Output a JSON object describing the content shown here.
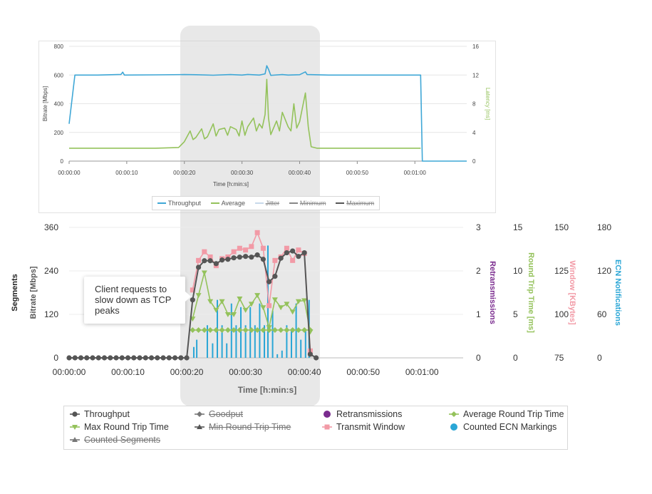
{
  "callout": {
    "text": "Client requests to slow down as TCP peaks"
  },
  "chart_data": [
    {
      "type": "line",
      "xlabel": "Time [h:min:s]",
      "ylabel": "Bitrate [Mbps]",
      "y2label": "Latency [ms]",
      "ylim": [
        0,
        800
      ],
      "y2lim": [
        0,
        16
      ],
      "y_ticks": [
        "0",
        "200",
        "400",
        "600",
        "800"
      ],
      "y2_ticks": [
        "0",
        "4",
        "8",
        "12",
        "16"
      ],
      "x_ticks": [
        "00:00:00",
        "00:00:10",
        "00:00:20",
        "00:00:30",
        "00:00:40",
        "00:00:50",
        "00:01:00"
      ],
      "x_range_s": [
        0,
        69
      ],
      "grid": true,
      "legend": [
        {
          "label": "Throughput",
          "color": "#3fa7d6",
          "marker": "circle",
          "hidden": false
        },
        {
          "label": "Average",
          "color": "#94c25b",
          "marker": "diamond",
          "hidden": false
        },
        {
          "label": "Jitter",
          "color": "#c8d9ea",
          "marker": "none",
          "hidden": true
        },
        {
          "label": "Minimum",
          "color": "#888888",
          "marker": "triangle",
          "hidden": true
        },
        {
          "label": "Maximum",
          "color": "#555555",
          "marker": "cross",
          "hidden": true
        }
      ],
      "series": [
        {
          "name": "Throughput",
          "axis": "left",
          "color": "#3fa7d6",
          "points": [
            [
              0,
              260
            ],
            [
              1,
              600
            ],
            [
              5,
              600
            ],
            [
              9,
              604
            ],
            [
              9.3,
              620
            ],
            [
              9.6,
              600
            ],
            [
              15,
              601
            ],
            [
              20,
              603
            ],
            [
              22,
              602
            ],
            [
              25,
              599
            ],
            [
              28,
              603
            ],
            [
              30,
              600
            ],
            [
              31,
              604
            ],
            [
              33,
              600
            ],
            [
              34,
              608
            ],
            [
              34.3,
              665
            ],
            [
              34.6,
              640
            ],
            [
              35,
              598
            ],
            [
              37,
              603
            ],
            [
              38,
              600
            ],
            [
              40,
              602
            ],
            [
              41,
              622
            ],
            [
              41.3,
              603
            ],
            [
              45,
              600
            ],
            [
              50,
              600
            ],
            [
              55,
              600
            ],
            [
              60,
              600
            ],
            [
              61,
              600
            ],
            [
              61.3,
              0
            ],
            [
              69,
              0
            ]
          ]
        },
        {
          "name": "Average",
          "axis": "right",
          "color": "#94c25b",
          "points": [
            [
              0,
              1.8
            ],
            [
              2,
              1.8
            ],
            [
              5,
              1.8
            ],
            [
              10,
              1.8
            ],
            [
              15,
              1.8
            ],
            [
              19,
              1.9
            ],
            [
              20,
              2.7
            ],
            [
              21,
              4.2
            ],
            [
              21.5,
              3
            ],
            [
              22,
              3.3
            ],
            [
              23,
              4.5
            ],
            [
              23.5,
              3.1
            ],
            [
              24,
              3.4
            ],
            [
              25,
              5.2
            ],
            [
              25.5,
              3.5
            ],
            [
              26,
              4.4
            ],
            [
              27,
              4.6
            ],
            [
              27.5,
              3.6
            ],
            [
              28,
              4.8
            ],
            [
              29,
              4.4
            ],
            [
              29.5,
              3.5
            ],
            [
              30,
              5.6
            ],
            [
              30.5,
              3.6
            ],
            [
              31,
              4.8
            ],
            [
              32,
              6
            ],
            [
              32.5,
              4.2
            ],
            [
              33,
              5.2
            ],
            [
              33.5,
              4.6
            ],
            [
              34,
              6.5
            ],
            [
              34.3,
              11.4
            ],
            [
              34.6,
              6
            ],
            [
              35,
              3.7
            ],
            [
              36,
              5.6
            ],
            [
              36.5,
              4.2
            ],
            [
              37,
              6.8
            ],
            [
              38,
              4.8
            ],
            [
              38.5,
              4.2
            ],
            [
              39,
              8
            ],
            [
              39.5,
              4.6
            ],
            [
              40,
              5.5
            ],
            [
              41,
              9.5
            ],
            [
              41.5,
              4.8
            ],
            [
              42,
              2
            ],
            [
              43,
              1.8
            ],
            [
              45,
              1.8
            ],
            [
              50,
              1.8
            ],
            [
              55,
              1.8
            ],
            [
              61,
              1.8
            ]
          ]
        }
      ]
    },
    {
      "type": "line",
      "xlabel": "Time [h:min:s]",
      "ylabel": "Bitrate [Mbps]",
      "ylabel_outer": "Segments",
      "ylim": [
        0,
        360
      ],
      "y_ticks": [
        "0",
        "120",
        "240",
        "360"
      ],
      "x_ticks": [
        "00:00:00",
        "00:00:10",
        "00:00:20",
        "00:00:30",
        "00:00:40",
        "00:00:50",
        "00:01:00"
      ],
      "x_range_s": [
        0,
        67
      ],
      "grid": true,
      "right_axes": [
        {
          "label": "Retransmissions",
          "color": "#7a2b8e",
          "ticks": [
            "0",
            "1",
            "2",
            "3"
          ]
        },
        {
          "label": "Round Trip Time [ms]",
          "color": "#94c25b",
          "ticks": [
            "0",
            "5",
            "10",
            "15"
          ]
        },
        {
          "label": "Window [KBytes]",
          "color": "#f29aa6",
          "ticks": [
            "75",
            "100",
            "125",
            "150"
          ]
        },
        {
          "label": "ECN Notifications",
          "color": "#2aa6d6",
          "ticks": [
            "0",
            "60",
            "120",
            "180"
          ]
        }
      ],
      "legend": [
        {
          "label": "Throughput",
          "color": "#555555",
          "marker": "circle",
          "hidden": false
        },
        {
          "label": "Goodput",
          "color": "#777777",
          "marker": "diamond",
          "hidden": true
        },
        {
          "label": "Retransmissions",
          "color": "#7a2b8e",
          "marker": "dot",
          "hidden": false
        },
        {
          "label": "Average Round Trip Time",
          "color": "#94c25b",
          "marker": "diamond",
          "hidden": false
        },
        {
          "label": "Max Round Trip Time",
          "color": "#94c25b",
          "marker": "triangle-down",
          "hidden": false
        },
        {
          "label": "Min Round Trip Time",
          "color": "#555555",
          "marker": "triangle",
          "hidden": true
        },
        {
          "label": "Transmit Window",
          "color": "#f29aa6",
          "marker": "square",
          "hidden": false
        },
        {
          "label": "Counted ECN Markings",
          "color": "#2aa6d6",
          "marker": "dot",
          "hidden": false
        },
        {
          "label": "Counted Segments",
          "color": "#777777",
          "marker": "triangle",
          "hidden": true
        }
      ],
      "series": [
        {
          "name": "Throughput",
          "units": "Mbps",
          "color": "#555555",
          "points": [
            [
              0,
              0
            ],
            [
              1,
              0
            ],
            [
              2,
              0
            ],
            [
              3,
              0
            ],
            [
              4,
              0
            ],
            [
              5,
              0
            ],
            [
              6,
              0
            ],
            [
              7,
              0
            ],
            [
              8,
              0
            ],
            [
              9,
              0
            ],
            [
              10,
              0
            ],
            [
              11,
              0
            ],
            [
              12,
              0
            ],
            [
              13,
              0
            ],
            [
              14,
              0
            ],
            [
              15,
              0
            ],
            [
              16,
              0
            ],
            [
              17,
              0
            ],
            [
              18,
              0
            ],
            [
              19,
              0
            ],
            [
              20,
              0
            ],
            [
              21,
              160
            ],
            [
              22,
              250
            ],
            [
              23,
              268
            ],
            [
              24,
              268
            ],
            [
              25,
              260
            ],
            [
              26,
              270
            ],
            [
              27,
              272
            ],
            [
              28,
              276
            ],
            [
              29,
              278
            ],
            [
              30,
              280
            ],
            [
              31,
              278
            ],
            [
              32,
              284
            ],
            [
              33,
              272
            ],
            [
              34,
              210
            ],
            [
              35,
              225
            ],
            [
              36,
              275
            ],
            [
              37,
              290
            ],
            [
              38,
              295
            ],
            [
              39,
              280
            ],
            [
              40,
              290
            ],
            [
              41,
              10
            ],
            [
              42,
              0
            ]
          ]
        },
        {
          "name": "Max Round Trip Time",
          "units": "ms",
          "color": "#94c25b",
          "points": [
            [
              21,
              4.5
            ],
            [
              22,
              7.2
            ],
            [
              23,
              9.8
            ],
            [
              24,
              6.5
            ],
            [
              25,
              5.5
            ],
            [
              26,
              6.5
            ],
            [
              27,
              5
            ],
            [
              28,
              5
            ],
            [
              29,
              6.8
            ],
            [
              30,
              5.5
            ],
            [
              31,
              6.2
            ],
            [
              32,
              7.2
            ],
            [
              33,
              5.8
            ],
            [
              34,
              3.5
            ],
            [
              35,
              6.7
            ],
            [
              36,
              5.8
            ],
            [
              37,
              6.2
            ],
            [
              38,
              5.3
            ],
            [
              39,
              6.5
            ],
            [
              40,
              6.6
            ],
            [
              41,
              3
            ]
          ]
        },
        {
          "name": "Average Round Trip Time",
          "units": "ms",
          "color": "#94c25b",
          "points": [
            [
              21,
              3.2
            ],
            [
              22,
              3.2
            ],
            [
              23,
              3.2
            ],
            [
              24,
              3.2
            ],
            [
              25,
              3.2
            ],
            [
              26,
              3.2
            ],
            [
              27,
              3.2
            ],
            [
              28,
              3.2
            ],
            [
              29,
              3.2
            ],
            [
              30,
              3.2
            ],
            [
              31,
              3.2
            ],
            [
              32,
              3.2
            ],
            [
              33,
              3.2
            ],
            [
              34,
              3.2
            ],
            [
              35,
              3.2
            ],
            [
              36,
              3.2
            ],
            [
              37,
              3.2
            ],
            [
              38,
              3.2
            ],
            [
              39,
              3.2
            ],
            [
              40,
              3.2
            ],
            [
              41,
              3.2
            ]
          ]
        },
        {
          "name": "Transmit Window",
          "units": "KBytes",
          "color": "#f29aa6",
          "points": [
            [
              21,
              114
            ],
            [
              22,
              131
            ],
            [
              23,
              136
            ],
            [
              24,
              133
            ],
            [
              25,
              128
            ],
            [
              26,
              132
            ],
            [
              27,
              133
            ],
            [
              28,
              136
            ],
            [
              29,
              138
            ],
            [
              30,
              137
            ],
            [
              31,
              139
            ],
            [
              32,
              147
            ],
            [
              33,
              138
            ],
            [
              34,
              105
            ],
            [
              35,
              131
            ],
            [
              36,
              133
            ],
            [
              37,
              138
            ],
            [
              38,
              131
            ],
            [
              39,
              137
            ],
            [
              40,
              135
            ],
            [
              41,
              79
            ]
          ]
        },
        {
          "name": "Counted ECN Markings",
          "units": "count",
          "type": "bar",
          "color": "#2aa6d6",
          "points": [
            [
              21.2,
              15
            ],
            [
              21.7,
              25
            ],
            [
              23.5,
              45
            ],
            [
              24.4,
              20
            ],
            [
              25.2,
              80
            ],
            [
              26.0,
              45
            ],
            [
              26.8,
              20
            ],
            [
              27.6,
              75
            ],
            [
              28.4,
              45
            ],
            [
              29.2,
              70
            ],
            [
              30.0,
              45
            ],
            [
              30.8,
              70
            ],
            [
              31.6,
              45
            ],
            [
              32.4,
              75
            ],
            [
              33.2,
              45
            ],
            [
              33.8,
              155
            ],
            [
              34.6,
              65
            ],
            [
              35.4,
              5
            ],
            [
              36.2,
              10
            ],
            [
              37.0,
              45
            ],
            [
              37.8,
              40
            ],
            [
              38.6,
              75
            ],
            [
              39.4,
              25
            ],
            [
              40.2,
              40
            ],
            [
              40.8,
              80
            ]
          ]
        }
      ]
    }
  ]
}
